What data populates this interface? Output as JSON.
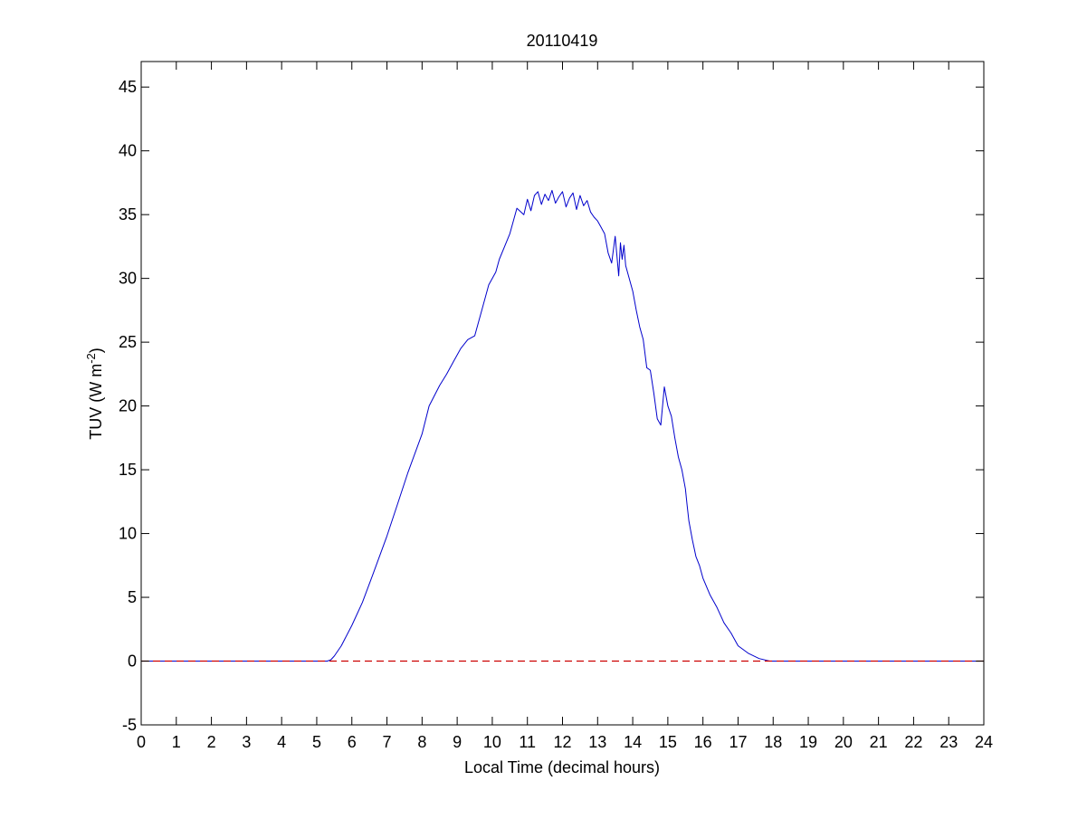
{
  "chart_data": {
    "type": "line",
    "title": "20110419",
    "xlabel": "Local Time (decimal hours)",
    "ylabel": {
      "main": "TUV (W m",
      "superscript": "-2",
      "suffix": ")"
    },
    "xlim": [
      0,
      24
    ],
    "ylim": [
      -5,
      47
    ],
    "xticks": [
      0,
      1,
      2,
      3,
      4,
      5,
      6,
      7,
      8,
      9,
      10,
      11,
      12,
      13,
      14,
      15,
      16,
      17,
      18,
      19,
      20,
      21,
      22,
      23,
      24
    ],
    "yticks": [
      -5,
      0,
      5,
      10,
      15,
      20,
      25,
      30,
      35,
      40,
      45
    ],
    "grid": false,
    "series": [
      {
        "style": "solid",
        "color": "#0000cc",
        "x": [
          0,
          5.3,
          5.4,
          5.5,
          5.7,
          6.0,
          6.3,
          6.6,
          7.0,
          7.3,
          7.6,
          8.0,
          8.2,
          8.5,
          8.7,
          8.9,
          9.1,
          9.3,
          9.5,
          9.7,
          9.9,
          10.1,
          10.2,
          10.35,
          10.5,
          10.7,
          10.9,
          11.0,
          11.1,
          11.2,
          11.3,
          11.4,
          11.5,
          11.6,
          11.7,
          11.8,
          11.9,
          12.0,
          12.1,
          12.2,
          12.3,
          12.4,
          12.5,
          12.6,
          12.7,
          12.8,
          12.9,
          13.0,
          13.1,
          13.2,
          13.3,
          13.4,
          13.5,
          13.6,
          13.65,
          13.7,
          13.75,
          13.8,
          13.9,
          14.0,
          14.1,
          14.2,
          14.3,
          14.4,
          14.5,
          14.6,
          14.7,
          14.8,
          14.9,
          15.0,
          15.1,
          15.2,
          15.3,
          15.4,
          15.5,
          15.55,
          15.6,
          15.7,
          15.8,
          15.9,
          16.0,
          16.2,
          16.4,
          16.6,
          16.8,
          17.0,
          17.3,
          17.6,
          17.9,
          18.1,
          18.4,
          18.6,
          18.8,
          19.0,
          24
        ],
        "y": [
          0,
          0,
          0.1,
          0.4,
          1.2,
          2.8,
          4.6,
          6.8,
          9.8,
          12.3,
          14.8,
          17.8,
          20.0,
          21.6,
          22.5,
          23.5,
          24.5,
          25.2,
          25.5,
          27.5,
          29.5,
          30.5,
          31.5,
          32.5,
          33.5,
          35.5,
          35.0,
          36.2,
          35.3,
          36.5,
          36.8,
          35.8,
          36.6,
          36.1,
          36.9,
          35.9,
          36.4,
          36.8,
          35.6,
          36.3,
          36.7,
          35.4,
          36.5,
          35.7,
          36.1,
          35.2,
          34.8,
          34.5,
          34.0,
          33.5,
          32.0,
          31.2,
          33.3,
          30.2,
          32.8,
          31.5,
          32.6,
          31.0,
          30.0,
          29.0,
          27.5,
          26.2,
          25.2,
          23.0,
          22.8,
          21.0,
          19.0,
          18.5,
          21.5,
          20.0,
          19.2,
          17.5,
          16.0,
          15.0,
          13.5,
          12.2,
          11.0,
          9.5,
          8.2,
          7.5,
          6.5,
          5.2,
          4.2,
          3.0,
          2.2,
          1.2,
          0.6,
          0.2,
          0,
          0,
          0,
          0,
          0,
          0,
          0
        ]
      },
      {
        "style": "dashed",
        "color": "#cc0000",
        "x": [
          0,
          24
        ],
        "y": [
          0,
          0
        ]
      }
    ]
  }
}
